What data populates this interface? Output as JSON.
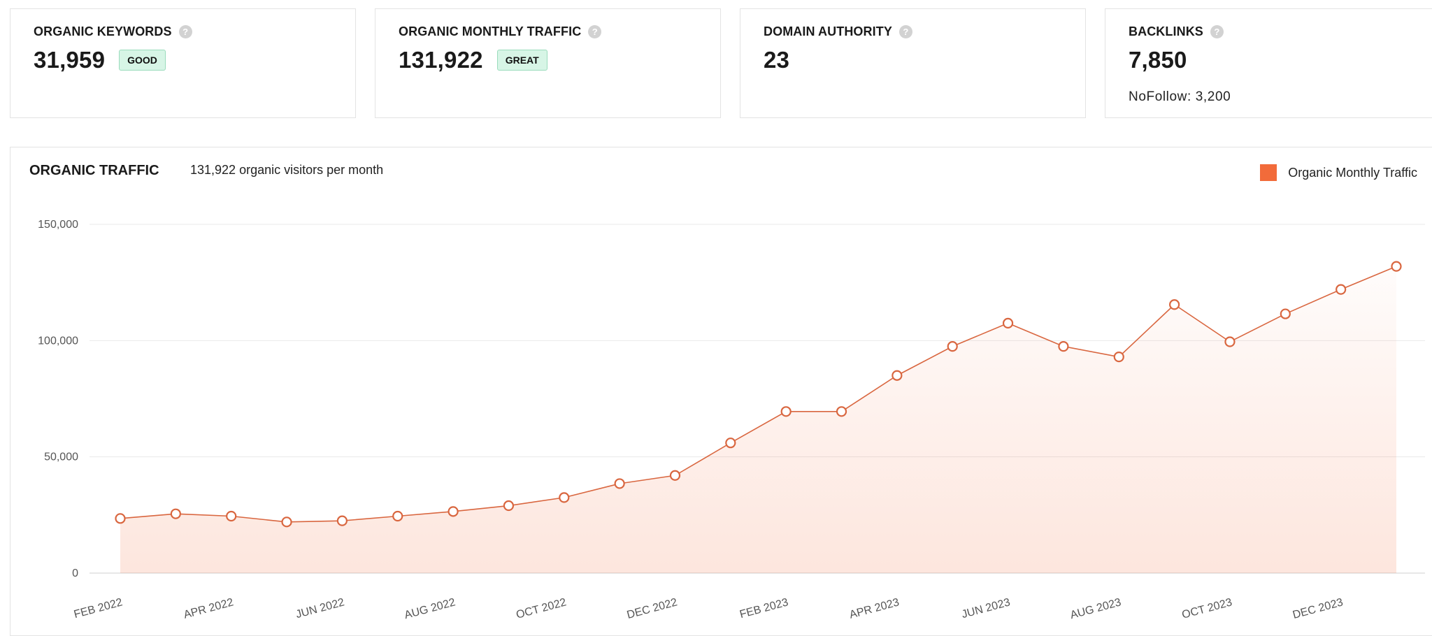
{
  "cards": [
    {
      "title": "ORGANIC KEYWORDS",
      "value": "31,959",
      "badge": "GOOD",
      "sub": ""
    },
    {
      "title": "ORGANIC MONTHLY TRAFFIC",
      "value": "131,922",
      "badge": "GREAT",
      "sub": ""
    },
    {
      "title": "DOMAIN AUTHORITY",
      "value": "23",
      "badge": "",
      "sub": ""
    },
    {
      "title": "BACKLINKS",
      "value": "7,850",
      "badge": "",
      "sub": "NoFollow: 3,200"
    }
  ],
  "help_icon": "?",
  "colors": {
    "accent": "#f26b3a",
    "line": "#d9663f",
    "badge_bg": "#d7f5e6"
  },
  "chart_data": {
    "type": "area",
    "title": "ORGANIC TRAFFIC",
    "subtitle": "131,922 organic visitors per month",
    "legend": "Organic Monthly Traffic",
    "legend_position": "top-right",
    "xlabel": "",
    "ylabel": "",
    "ylim": [
      0,
      150000
    ],
    "yticks": [
      0,
      50000,
      100000,
      150000
    ],
    "ytick_labels": [
      "0",
      "50,000",
      "100,000",
      "150,000"
    ],
    "grid": true,
    "x": [
      "FEB 2022",
      "MAR 2022",
      "APR 2022",
      "MAY 2022",
      "JUN 2022",
      "JUL 2022",
      "AUG 2022",
      "SEP 2022",
      "OCT 2022",
      "NOV 2022",
      "DEC 2022",
      "JAN 2023",
      "FEB 2023",
      "MAR 2023",
      "APR 2023",
      "MAY 2023",
      "JUN 2023",
      "JUL 2023",
      "AUG 2023",
      "SEP 2023",
      "OCT 2023",
      "NOV 2023",
      "DEC 2023",
      "JAN 2024"
    ],
    "xtick_labels": [
      "FEB 2022",
      "APR 2022",
      "JUN 2022",
      "AUG 2022",
      "OCT 2022",
      "DEC 2022",
      "FEB 2023",
      "APR 2023",
      "JUN 2023",
      "AUG 2023",
      "OCT 2023",
      "DEC 2023"
    ],
    "series": [
      {
        "name": "Organic Monthly Traffic",
        "values": [
          23500,
          25500,
          24500,
          22000,
          22500,
          24500,
          26500,
          29000,
          32500,
          38500,
          42000,
          56000,
          69500,
          69500,
          85000,
          97500,
          107500,
          97500,
          93000,
          115500,
          99500,
          111500,
          122000,
          131922
        ]
      }
    ]
  }
}
